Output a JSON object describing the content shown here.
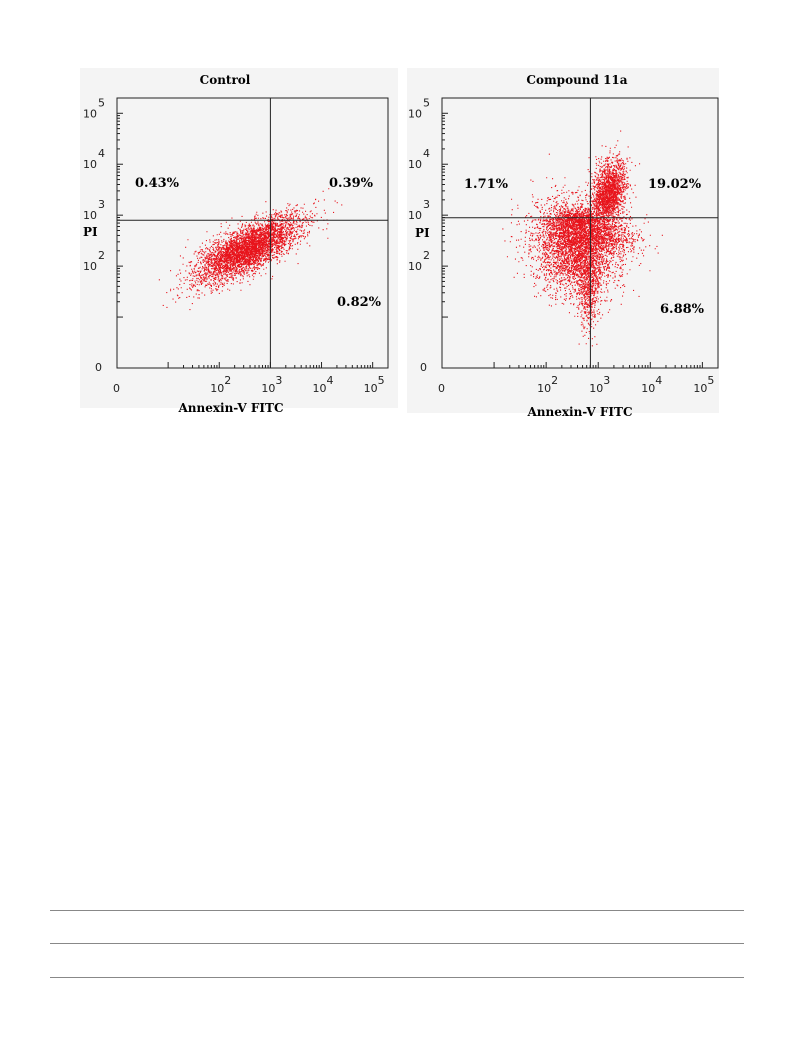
{
  "chart_data": [
    {
      "type": "scatter",
      "title": "Control",
      "xlabel": "Annexin-V FITC",
      "ylabel": "PI",
      "x_scale": "log",
      "y_scale": "log",
      "xlim_log10": [
        0,
        5.3
      ],
      "ylim_log10": [
        0,
        5.3
      ],
      "x_ticks": [
        {
          "base": "0",
          "exp": "",
          "log10": 0
        },
        {
          "base": "10",
          "exp": "2",
          "log10": 2
        },
        {
          "base": "10",
          "exp": "3",
          "log10": 3
        },
        {
          "base": "10",
          "exp": "4",
          "log10": 4
        },
        {
          "base": "10",
          "exp": "5",
          "log10": 5
        }
      ],
      "y_ticks": [
        {
          "base": "0",
          "exp": "",
          "log10": 0
        },
        {
          "base": "10",
          "exp": "2",
          "log10": 2
        },
        {
          "base": "10",
          "exp": "3",
          "log10": 3
        },
        {
          "base": "10",
          "exp": "4",
          "log10": 4
        },
        {
          "base": "10",
          "exp": "5",
          "log10": 5
        }
      ],
      "gate_log10": {
        "x": 3.0,
        "y": 2.9
      },
      "quadrants": {
        "upper_left": "0.43%",
        "upper_right": "0.39%",
        "lower_right": "0.82%"
      },
      "point_color": "#e8141c",
      "clusters": [
        {
          "cx": 2.55,
          "cy": 2.35,
          "sx": 0.5,
          "sy": 0.32,
          "rho": 0.72,
          "n": 4200
        }
      ]
    },
    {
      "type": "scatter",
      "title": "Compound 11a",
      "xlabel": "Annexin-V FITC",
      "ylabel": "PI",
      "x_scale": "log",
      "y_scale": "log",
      "xlim_log10": [
        0,
        5.3
      ],
      "ylim_log10": [
        0,
        5.3
      ],
      "x_ticks": [
        {
          "base": "0",
          "exp": "",
          "log10": 0
        },
        {
          "base": "10",
          "exp": "2",
          "log10": 2
        },
        {
          "base": "10",
          "exp": "3",
          "log10": 3
        },
        {
          "base": "10",
          "exp": "4",
          "log10": 4
        },
        {
          "base": "10",
          "exp": "5",
          "log10": 5
        }
      ],
      "y_ticks": [
        {
          "base": "0",
          "exp": "",
          "log10": 0
        },
        {
          "base": "10",
          "exp": "2",
          "log10": 2
        },
        {
          "base": "10",
          "exp": "3",
          "log10": 3
        },
        {
          "base": "10",
          "exp": "4",
          "log10": 4
        },
        {
          "base": "10",
          "exp": "5",
          "log10": 5
        }
      ],
      "gate_log10": {
        "x": 2.85,
        "y": 2.95
      },
      "quadrants": {
        "upper_left": "1.71%",
        "upper_right": "19.02%",
        "lower_right": "6.88%"
      },
      "point_color": "#e8141c",
      "clusters": [
        {
          "cx": 2.55,
          "cy": 2.35,
          "sx": 0.42,
          "sy": 0.45,
          "rho": -0.1,
          "n": 3200
        },
        {
          "cx": 3.2,
          "cy": 3.45,
          "sx": 0.16,
          "sy": 0.32,
          "rho": 0.3,
          "n": 1800
        },
        {
          "cx": 3.05,
          "cy": 2.6,
          "sx": 0.35,
          "sy": 0.18,
          "rho": 0.0,
          "n": 900
        },
        {
          "cx": 2.55,
          "cy": 2.9,
          "sx": 0.25,
          "sy": 0.15,
          "rho": 0.2,
          "n": 700
        },
        {
          "cx": 2.8,
          "cy": 1.5,
          "sx": 0.1,
          "sy": 0.4,
          "rho": 0.0,
          "n": 500
        }
      ]
    }
  ]
}
